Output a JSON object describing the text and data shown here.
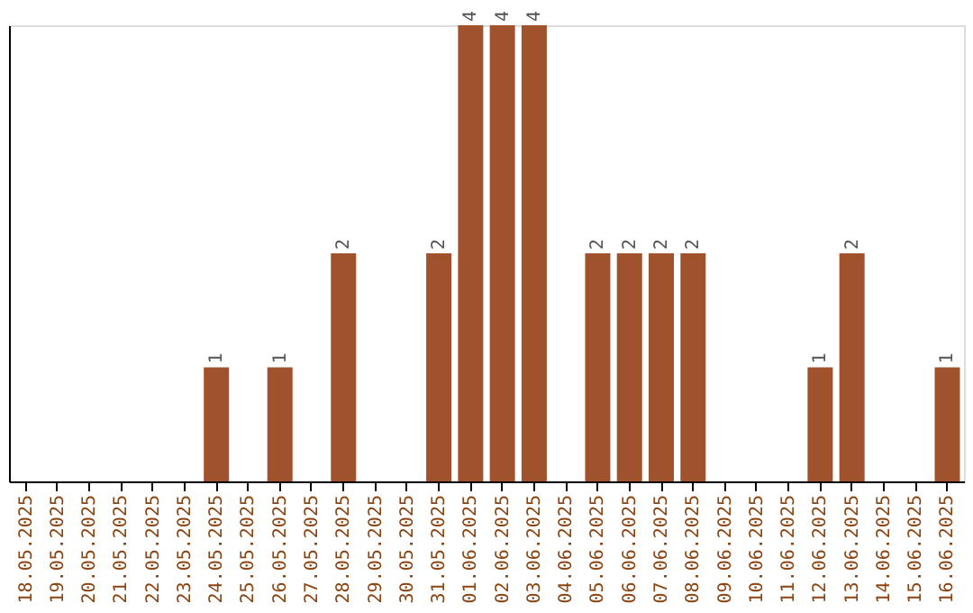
{
  "chart_data": {
    "type": "bar",
    "categories": [
      "18.05.2025",
      "19.05.2025",
      "20.05.2025",
      "21.05.2025",
      "22.05.2025",
      "23.05.2025",
      "24.05.2025",
      "25.05.2025",
      "26.05.2025",
      "27.05.2025",
      "28.05.2025",
      "29.05.2025",
      "30.05.2025",
      "31.05.2025",
      "01.06.2025",
      "02.06.2025",
      "03.06.2025",
      "04.06.2025",
      "05.06.2025",
      "06.06.2025",
      "07.06.2025",
      "08.06.2025",
      "09.06.2025",
      "10.06.2025",
      "11.06.2025",
      "12.06.2025",
      "13.06.2025",
      "14.06.2025",
      "15.06.2025",
      "16.06.2025"
    ],
    "values": [
      null,
      null,
      null,
      null,
      null,
      null,
      1,
      null,
      1,
      null,
      2,
      null,
      null,
      2,
      4,
      4,
      4,
      null,
      2,
      2,
      2,
      2,
      null,
      null,
      null,
      1,
      2,
      null,
      null,
      1
    ],
    "color": "#a0522d",
    "data_labels": true,
    "tick_labels": "x",
    "grid": false
  }
}
